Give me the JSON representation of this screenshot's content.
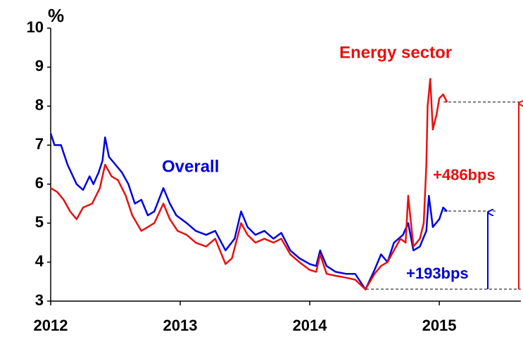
{
  "chart_data": {
    "type": "line",
    "y_unit": "%",
    "xlim": [
      2012,
      2015.63
    ],
    "xticks": [
      2012,
      2013,
      2014,
      2015
    ],
    "ylim": [
      3,
      10
    ],
    "yticks": [
      3,
      4,
      5,
      6,
      7,
      8,
      9,
      10
    ],
    "series": [
      {
        "name": "Overall",
        "color": "#0000e0",
        "x": [
          2012.0,
          2012.03,
          2012.08,
          2012.13,
          2012.2,
          2012.25,
          2012.3,
          2012.33,
          2012.37,
          2012.4,
          2012.42,
          2012.45,
          2012.5,
          2012.55,
          2012.6,
          2012.65,
          2012.7,
          2012.75,
          2012.8,
          2012.87,
          2012.92,
          2012.97,
          2013.05,
          2013.12,
          2013.2,
          2013.27,
          2013.35,
          2013.42,
          2013.47,
          2013.52,
          2013.58,
          2013.65,
          2013.72,
          2013.78,
          2013.85,
          2013.92,
          2014.0,
          2014.05,
          2014.08,
          2014.13,
          2014.2,
          2014.28,
          2014.35,
          2014.43,
          2014.5,
          2014.55,
          2014.6,
          2014.65,
          2014.72,
          2014.76,
          2014.8,
          2014.85,
          2014.9,
          2014.92,
          2014.95,
          2015.0,
          2015.03,
          2015.06
        ],
        "values": [
          7.3,
          7.0,
          7.0,
          6.5,
          6.0,
          5.85,
          6.2,
          6.0,
          6.3,
          6.6,
          7.2,
          6.7,
          6.5,
          6.3,
          6.0,
          5.5,
          5.6,
          5.2,
          5.3,
          5.9,
          5.5,
          5.2,
          5.0,
          4.8,
          4.7,
          4.8,
          4.3,
          4.6,
          5.3,
          4.9,
          4.7,
          4.8,
          4.6,
          4.75,
          4.3,
          4.1,
          3.95,
          3.9,
          4.3,
          3.9,
          3.75,
          3.7,
          3.7,
          3.3,
          3.8,
          4.2,
          4.0,
          4.5,
          4.7,
          5.0,
          4.3,
          4.4,
          4.8,
          5.7,
          4.9,
          5.1,
          5.4,
          5.3
        ]
      },
      {
        "name": "Energy sector",
        "color": "#e81010",
        "x": [
          2012.0,
          2012.05,
          2012.1,
          2012.15,
          2012.2,
          2012.25,
          2012.32,
          2012.38,
          2012.42,
          2012.47,
          2012.52,
          2012.58,
          2012.63,
          2012.7,
          2012.75,
          2012.8,
          2012.87,
          2012.92,
          2012.98,
          2013.05,
          2013.12,
          2013.2,
          2013.27,
          2013.35,
          2013.4,
          2013.47,
          2013.52,
          2013.58,
          2013.65,
          2013.72,
          2013.78,
          2013.85,
          2013.92,
          2014.0,
          2014.05,
          2014.08,
          2014.13,
          2014.2,
          2014.28,
          2014.35,
          2014.43,
          2014.5,
          2014.55,
          2014.6,
          2014.65,
          2014.7,
          2014.74,
          2014.76,
          2014.8,
          2014.85,
          2014.88,
          2014.9,
          2014.91,
          2014.93,
          2014.95,
          2014.98,
          2015.0,
          2015.03,
          2015.06
        ],
        "values": [
          5.9,
          5.8,
          5.6,
          5.3,
          5.1,
          5.4,
          5.5,
          5.9,
          6.5,
          6.2,
          6.1,
          5.7,
          5.2,
          4.8,
          4.9,
          5.0,
          5.5,
          5.1,
          4.8,
          4.7,
          4.5,
          4.4,
          4.6,
          3.95,
          4.1,
          5.0,
          4.7,
          4.5,
          4.6,
          4.5,
          4.6,
          4.2,
          4.0,
          3.8,
          3.75,
          4.2,
          3.7,
          3.65,
          3.6,
          3.55,
          3.3,
          3.7,
          3.9,
          4.0,
          4.3,
          4.6,
          4.5,
          5.7,
          4.4,
          4.6,
          5.0,
          6.5,
          8.0,
          8.7,
          7.4,
          7.8,
          8.2,
          8.3,
          8.1
        ]
      }
    ],
    "annotations": [
      "+486bps",
      "+193bps"
    ]
  }
}
